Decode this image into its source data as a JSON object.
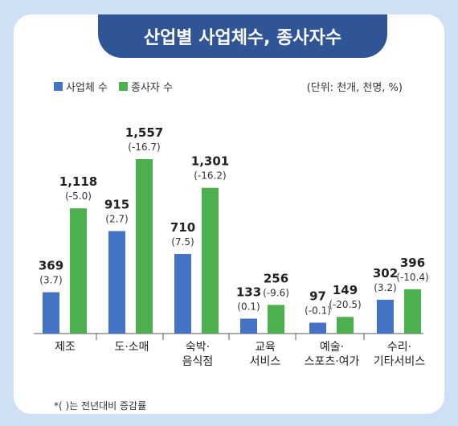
{
  "title": "산업별 사업체수, 종사자수",
  "unit_note": "(단위: 천개, 천명, %)",
  "footnote": "*(   )는 전년대비 증감률",
  "colors": {
    "frame": "#cfe0f4",
    "title_bg": "#2f5597",
    "blue": "#4472c4",
    "green": "#4cb04f"
  },
  "chart_data": {
    "type": "bar",
    "categories": [
      [
        "제조"
      ],
      [
        "도·소매"
      ],
      [
        "숙박·",
        "음식점"
      ],
      [
        "교육",
        "서비스"
      ],
      [
        "예술·",
        "스포츠·여가"
      ],
      [
        "수리·",
        "기타서비스"
      ]
    ],
    "series": [
      {
        "name": "사업체 수",
        "color": "#4472c4",
        "values": [
          369,
          915,
          710,
          133,
          97,
          302
        ],
        "change_labels": [
          "(3.7)",
          "(2.7)",
          "(7.5)",
          "(0.1)",
          "(-0.1)",
          "(3.2)"
        ]
      },
      {
        "name": "종사자 수",
        "color": "#4cb04f",
        "values": [
          1118,
          1557,
          1301,
          256,
          149,
          396
        ],
        "change_labels": [
          "(-5.0)",
          "(-16.7)",
          "(-16.2)",
          "(-9.6)",
          "(-20.5)",
          "(-10.4)"
        ]
      }
    ],
    "value_labels": [
      [
        "369",
        "915",
        "710",
        "133",
        "97",
        "302"
      ],
      [
        "1,118",
        "1,557",
        "1,301",
        "256",
        "149",
        "396"
      ]
    ],
    "ylim": [
      0,
      1600
    ],
    "grid": false,
    "legend": "top-left"
  }
}
